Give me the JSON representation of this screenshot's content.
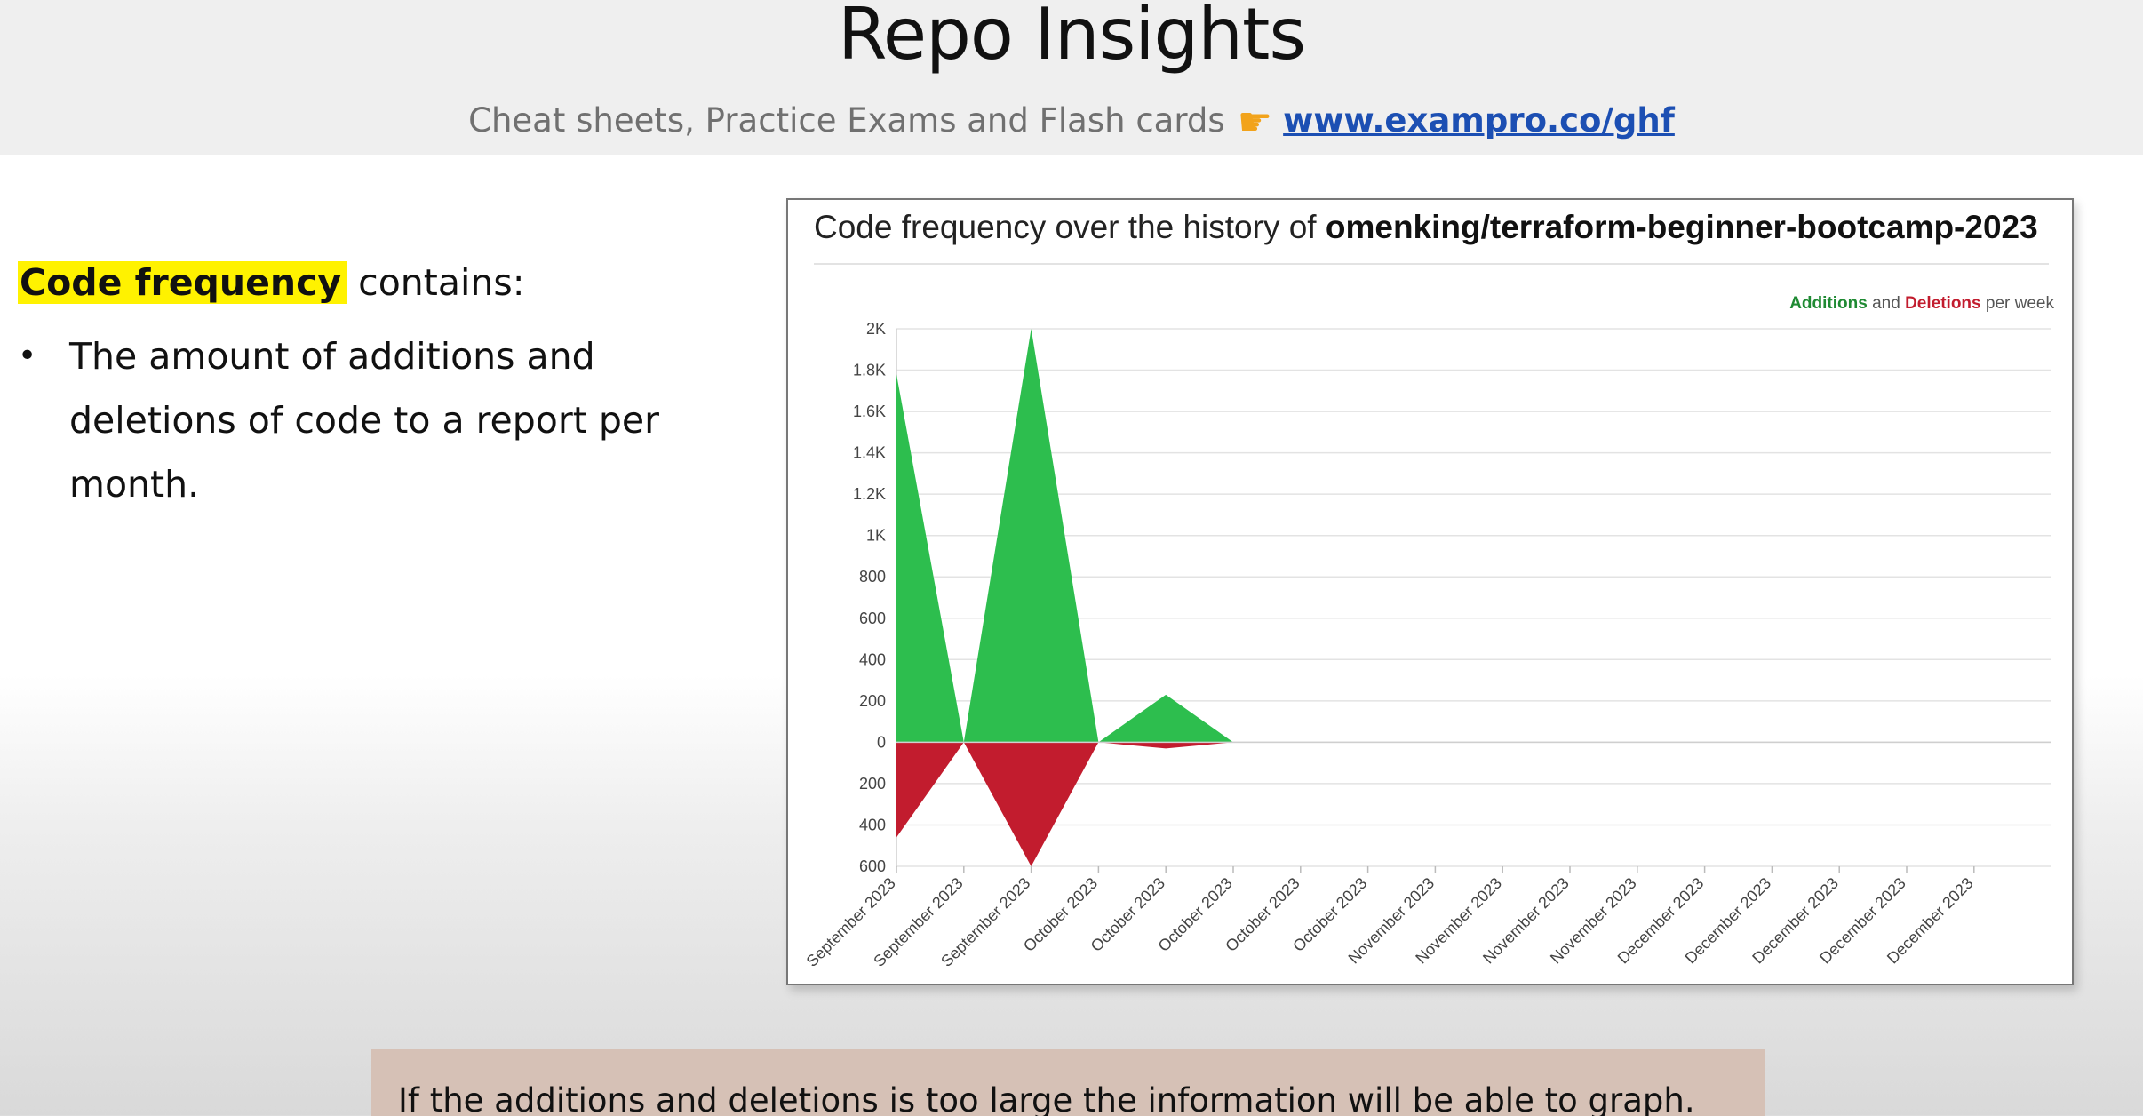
{
  "slide": {
    "title": "Repo Insights",
    "promo_text": "Cheat sheets, Practice Exams and Flash cards",
    "promo_link": "www.exampro.co/ghf",
    "promo_icon": "pointing-hand-icon"
  },
  "left": {
    "highlight": "Code frequency",
    "contains": "contains:",
    "bullet": "The amount of additions and deletions of code to a report per month."
  },
  "chart_card": {
    "title_prefix": "Code frequency over the history of",
    "repo": "omenking/terraform-beginner-bootcamp-2023",
    "legend_additions": "Additions",
    "legend_and": "and",
    "legend_deletions": "Deletions",
    "legend_suffix": "per week"
  },
  "note": "If the additions and deletions is too large the information will be able to graph.",
  "colors": {
    "additions": "#2dbe4e",
    "deletions": "#c21c2e",
    "highlight": "#fff200",
    "link": "#1c4fb3"
  },
  "chart_data": {
    "type": "area",
    "title": "Code frequency over the history of omenking/terraform-beginner-bootcamp-2023",
    "legend": "top-right",
    "grid": true,
    "x": [
      "September 2023",
      "September 2023",
      "September 2023",
      "October 2023",
      "October 2023",
      "October 2023",
      "October 2023",
      "October 2023",
      "November 2023",
      "November 2023",
      "November 2023",
      "November 2023",
      "December 2023",
      "December 2023",
      "December 2023",
      "December 2023",
      "December 2023"
    ],
    "series": [
      {
        "name": "Additions",
        "values": [
          1780,
          0,
          2000,
          0,
          230,
          0,
          0,
          0,
          0,
          0,
          0,
          0,
          0,
          0,
          0,
          0,
          0
        ]
      },
      {
        "name": "Deletions",
        "values": [
          -460,
          0,
          -600,
          0,
          -30,
          0,
          0,
          0,
          0,
          0,
          0,
          0,
          0,
          0,
          0,
          0,
          0
        ]
      }
    ],
    "ylim": [
      -600,
      2000
    ],
    "yticks": [
      {
        "v": 2000,
        "label": "2K"
      },
      {
        "v": 1800,
        "label": "1.8K"
      },
      {
        "v": 1600,
        "label": "1.6K"
      },
      {
        "v": 1400,
        "label": "1.4K"
      },
      {
        "v": 1200,
        "label": "1.2K"
      },
      {
        "v": 1000,
        "label": "1K"
      },
      {
        "v": 800,
        "label": "800"
      },
      {
        "v": 600,
        "label": "600"
      },
      {
        "v": 400,
        "label": "400"
      },
      {
        "v": 200,
        "label": "200"
      },
      {
        "v": 0,
        "label": "0"
      },
      {
        "v": -200,
        "label": "200"
      },
      {
        "v": -400,
        "label": "400"
      },
      {
        "v": -600,
        "label": "600"
      }
    ]
  }
}
